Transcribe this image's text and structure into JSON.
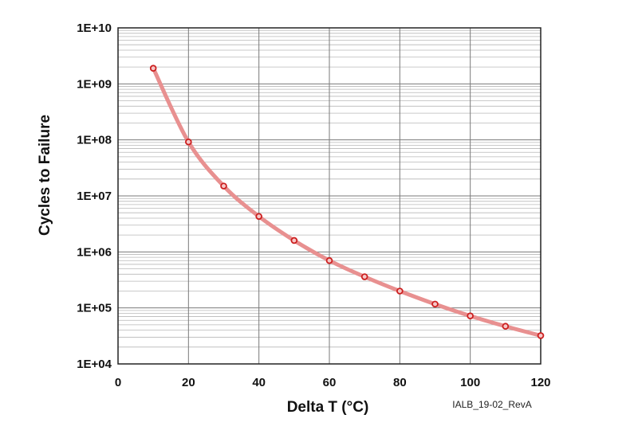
{
  "chart_data": {
    "type": "line",
    "xlabel": "Delta T (°C)",
    "ylabel": "Cycles to Failure",
    "xlim": [
      0,
      120
    ],
    "ylim": [
      10000,
      10000000000
    ],
    "y_scale": "log",
    "x_ticks": [
      "0",
      "20",
      "40",
      "60",
      "80",
      "100",
      "120"
    ],
    "y_ticks": [
      "1E+04",
      "1E+05",
      "1E+06",
      "1E+07",
      "1E+08",
      "1E+09",
      "1E+10"
    ],
    "grid": true,
    "series": [
      {
        "x": [
          10,
          20,
          30,
          40,
          50,
          60,
          70,
          80,
          90,
          100,
          110,
          120
        ],
        "y": [
          1900000000,
          92000000,
          15000000,
          4300000,
          1600000,
          700000,
          360000,
          200000,
          117000,
          72000,
          47000,
          32000
        ],
        "line_color": "#e89090",
        "marker_color": "#cc1f1f"
      }
    ],
    "annotation": "IALB_19-02_RevA"
  },
  "colors": {
    "major_grid": "#7a7a7a",
    "minor_grid": "#b8b8b8",
    "frame": "#222222"
  }
}
